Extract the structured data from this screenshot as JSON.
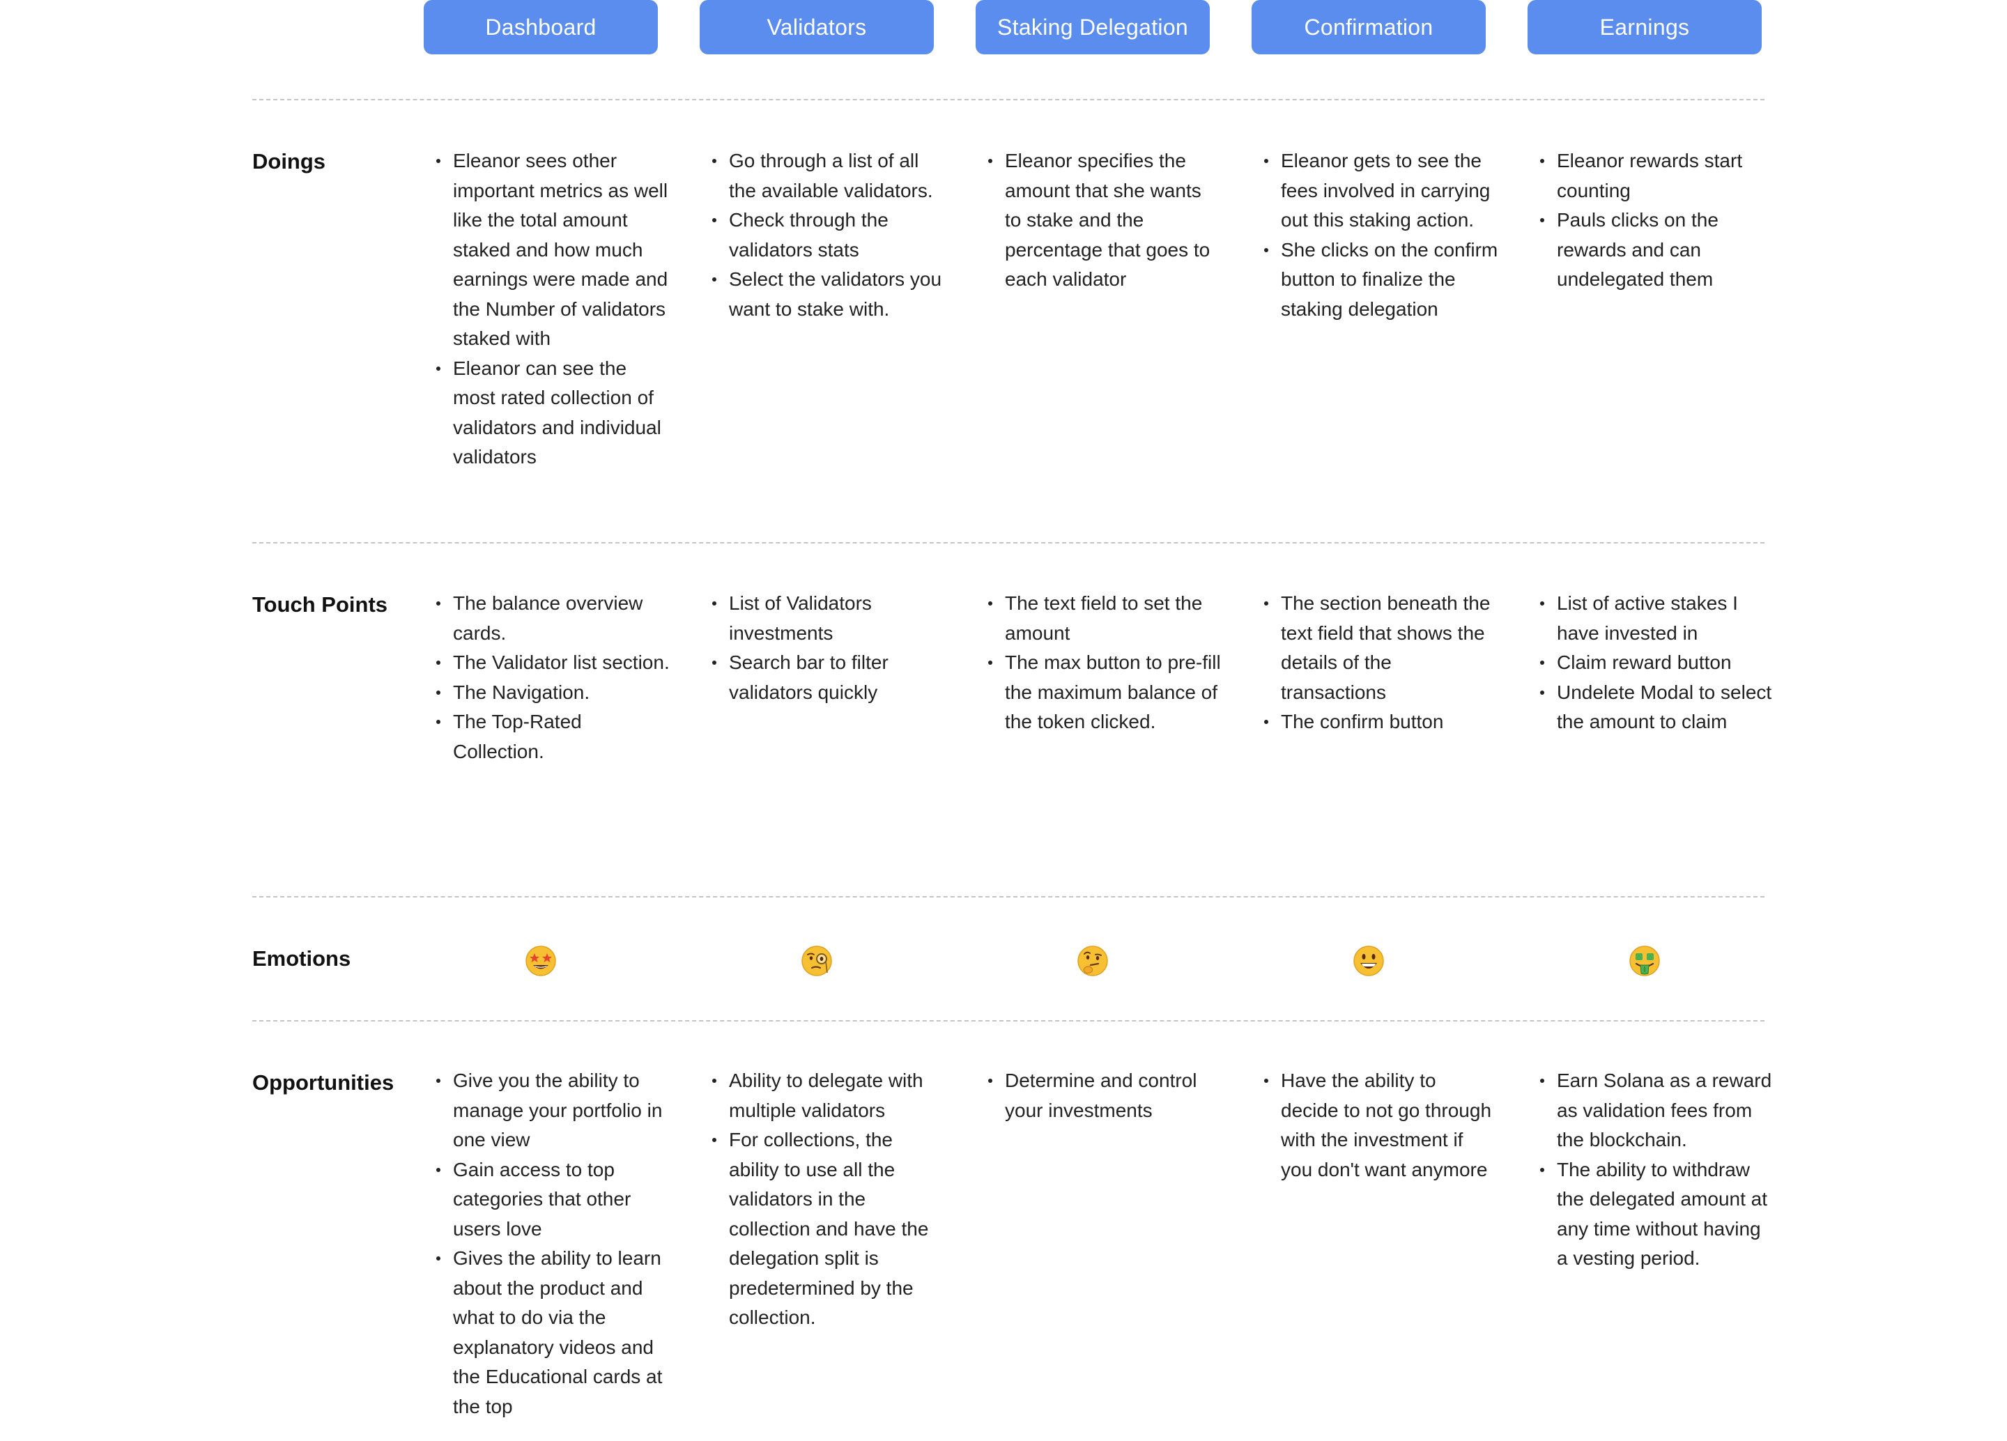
{
  "phases": [
    "Dashboard",
    "Validators",
    "Staking Delegation",
    "Confirmation",
    "Earnings"
  ],
  "rows": {
    "doings": {
      "label": "Doings",
      "cells": [
        [
          "Eleanor sees other important metrics as well like the total amount staked and how much earnings were made and the Number of validators staked with",
          "Eleanor can see the most rated collection of validators and individual validators"
        ],
        [
          "Go through a list of all the available validators.",
          "Check through the validators stats",
          "Select the validators you want to stake with."
        ],
        [
          "Eleanor specifies the amount that she wants to stake and the percentage that goes to each validator"
        ],
        [
          "Eleanor gets to see the fees involved in carrying out this staking action.",
          "She clicks on the confirm button to finalize the staking delegation"
        ],
        [
          "Eleanor rewards start counting",
          "Pauls clicks on the rewards and can undelegated them"
        ]
      ]
    },
    "touch_points": {
      "label": "Touch Points",
      "cells": [
        [
          "The balance overview cards.",
          "The Validator list section.",
          "The Navigation.",
          "The Top-Rated Collection."
        ],
        [
          "List of Validators investments",
          "Search bar to filter validators quickly"
        ],
        [
          "The text field to set the amount",
          "The max button to pre-fill the maximum balance of the token clicked."
        ],
        [
          "The section beneath the text field that shows the details of the transactions",
          "The confirm button"
        ],
        [
          "List of active stakes I have invested in",
          "Claim reward button",
          "Undelete Modal to select the amount to claim"
        ]
      ]
    },
    "emotions": {
      "label": "Emotions",
      "icons": [
        "star-struck-emoji-icon",
        "monocle-face-emoji-icon",
        "thinking-face-emoji-icon",
        "grinning-face-emoji-icon",
        "money-mouth-face-emoji-icon"
      ]
    },
    "opportunities": {
      "label": "Opportunities",
      "cells": [
        [
          "Give you the ability to manage your portfolio in one view",
          "Gain access to top categories that other users love",
          "Gives the ability to learn about the product and what to do via the explanatory videos and the Educational cards at the top"
        ],
        [
          "Ability to delegate with multiple validators",
          "For collections, the ability to use all the validators in the collection and have the delegation split is predetermined by the collection."
        ],
        [
          "Determine and control your investments"
        ],
        [
          "Have the ability to decide to not go through with the investment if you don't want anymore"
        ],
        [
          "Earn Solana as a reward as validation fees from the blockchain.",
          "The ability to withdraw the delegated amount at any time without having a vesting period."
        ]
      ]
    }
  },
  "colors": {
    "phase_bg": "#5b8def",
    "phase_text": "#ffffff",
    "divider": "#c4c4c4",
    "emoji_yellow": "#f7c033"
  }
}
